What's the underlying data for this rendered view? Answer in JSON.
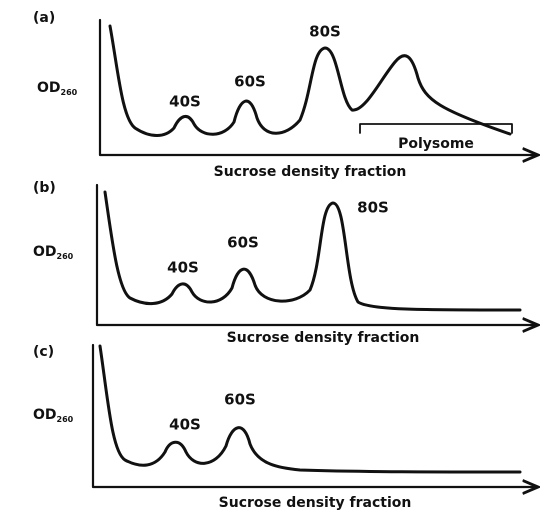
{
  "panels": [
    {
      "label": "(a)",
      "ylabel": "OD",
      "ylabel_sub": "260",
      "xlabel": "Sucrose density fraction",
      "peaks": [
        "40S",
        "60S",
        "80S"
      ],
      "polysome": "Polysome"
    },
    {
      "label": "(b)",
      "ylabel": "OD",
      "ylabel_sub": "260",
      "xlabel": "Sucrose density fraction",
      "peaks": [
        "40S",
        "60S",
        "80S"
      ]
    },
    {
      "label": "(c)",
      "ylabel": "OD",
      "ylabel_sub": "260",
      "xlabel": "Sucrose density fraction",
      "peaks": [
        "40S",
        "60S"
      ]
    }
  ]
}
